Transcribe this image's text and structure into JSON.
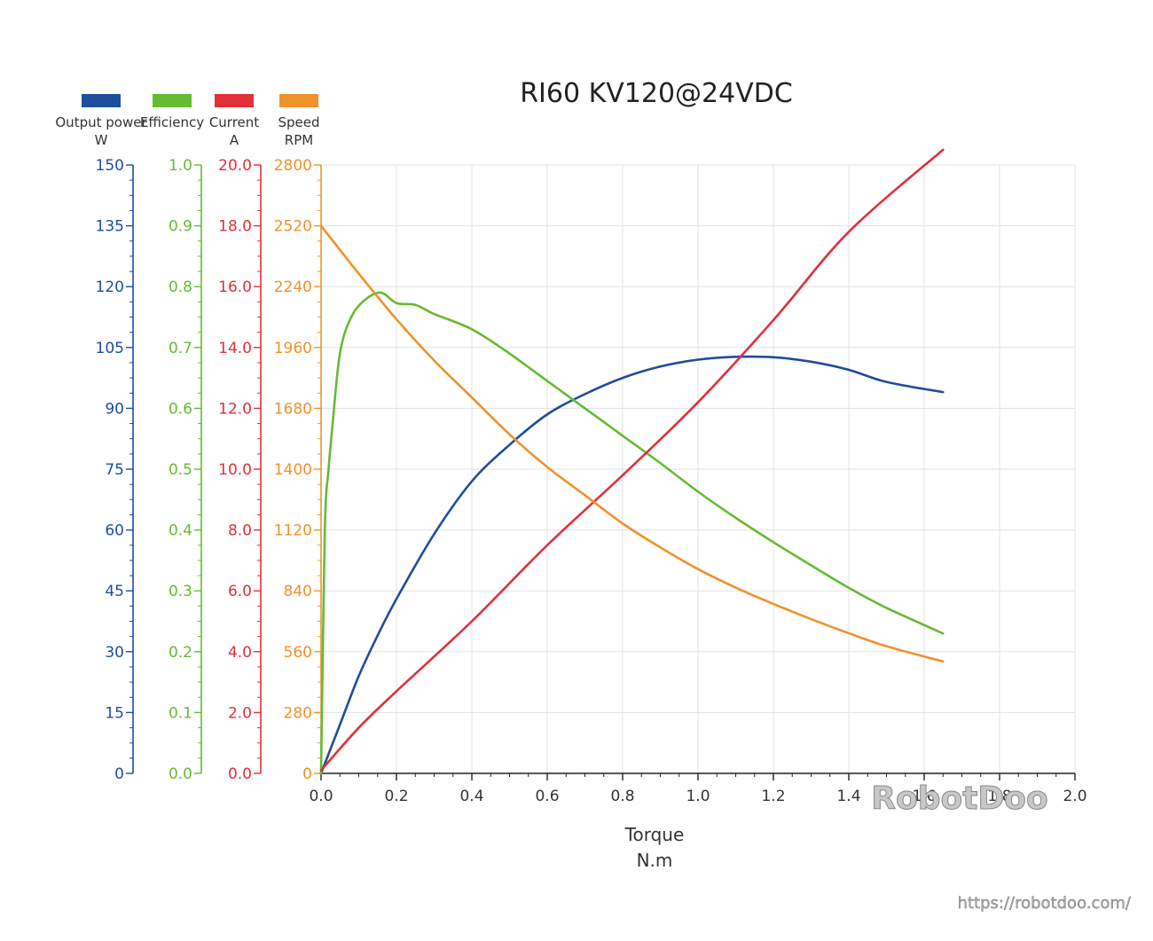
{
  "chart_data": {
    "type": "line",
    "title": "RI60 KV120@24VDC",
    "xlabel": "Torque",
    "xunit": "N.m",
    "xlim": [
      0,
      2.0
    ],
    "xticks": [
      "0.0",
      "0.2",
      "0.4",
      "0.6",
      "0.8",
      "1.0",
      "1.2",
      "1.4",
      "1.6",
      "1.8",
      "2.0"
    ],
    "grid": true,
    "legend_position": "top-left",
    "axes": [
      {
        "id": "power",
        "label": "Output power",
        "unit": "W",
        "color": "#1f4e9c",
        "range": [
          0,
          150
        ],
        "ticks": [
          "0",
          "15",
          "30",
          "45",
          "60",
          "75",
          "90",
          "105",
          "120",
          "135",
          "150"
        ]
      },
      {
        "id": "efficiency",
        "label": "Efficiency",
        "unit": "",
        "color": "#66bb33",
        "range": [
          0,
          1.0
        ],
        "ticks": [
          "0.0",
          "0.1",
          "0.2",
          "0.3",
          "0.4",
          "0.5",
          "0.6",
          "0.7",
          "0.8",
          "0.9",
          "1.0"
        ]
      },
      {
        "id": "current",
        "label": "Current",
        "unit": "A",
        "color": "#e0303a",
        "range": [
          0,
          20
        ],
        "ticks": [
          "0.0",
          "2.0",
          "4.0",
          "6.0",
          "8.0",
          "10.0",
          "12.0",
          "14.0",
          "16.0",
          "18.0",
          "20.0"
        ]
      },
      {
        "id": "speed",
        "label": "Speed",
        "unit": "RPM",
        "color": "#f0922b",
        "range": [
          0,
          2800
        ],
        "ticks": [
          "0",
          "280",
          "560",
          "840",
          "1120",
          "1400",
          "1680",
          "1960",
          "2240",
          "2520",
          "2800"
        ]
      }
    ],
    "series": [
      {
        "name": "Output power",
        "axis": "power",
        "color": "#1f4e9c",
        "points": [
          [
            0.0,
            0
          ],
          [
            0.05,
            12
          ],
          [
            0.1,
            24
          ],
          [
            0.15,
            34
          ],
          [
            0.2,
            43
          ],
          [
            0.3,
            59
          ],
          [
            0.4,
            72
          ],
          [
            0.5,
            81
          ],
          [
            0.6,
            88.5
          ],
          [
            0.7,
            93.5
          ],
          [
            0.8,
            97.5
          ],
          [
            0.9,
            100.3
          ],
          [
            1.0,
            102
          ],
          [
            1.1,
            102.7
          ],
          [
            1.2,
            102.6
          ],
          [
            1.3,
            101.5
          ],
          [
            1.4,
            99.5
          ],
          [
            1.5,
            96.5
          ],
          [
            1.65,
            94
          ]
        ]
      },
      {
        "name": "Efficiency",
        "axis": "efficiency",
        "color": "#66bb33",
        "points": [
          [
            0.0,
            0.0
          ],
          [
            0.01,
            0.4
          ],
          [
            0.02,
            0.5
          ],
          [
            0.03,
            0.57
          ],
          [
            0.05,
            0.69
          ],
          [
            0.08,
            0.75
          ],
          [
            0.12,
            0.78
          ],
          [
            0.16,
            0.79
          ],
          [
            0.2,
            0.773
          ],
          [
            0.25,
            0.77
          ],
          [
            0.3,
            0.755
          ],
          [
            0.4,
            0.73
          ],
          [
            0.5,
            0.69
          ],
          [
            0.6,
            0.645
          ],
          [
            0.7,
            0.6
          ],
          [
            0.8,
            0.555
          ],
          [
            0.9,
            0.51
          ],
          [
            1.0,
            0.463
          ],
          [
            1.1,
            0.42
          ],
          [
            1.2,
            0.38
          ],
          [
            1.3,
            0.342
          ],
          [
            1.4,
            0.305
          ],
          [
            1.5,
            0.272
          ],
          [
            1.65,
            0.23
          ]
        ]
      },
      {
        "name": "Current",
        "axis": "current",
        "color": "#e0303a",
        "points": [
          [
            0.0,
            0.1
          ],
          [
            0.1,
            1.5
          ],
          [
            0.2,
            2.7
          ],
          [
            0.4,
            5.0
          ],
          [
            0.6,
            7.5
          ],
          [
            0.8,
            9.8
          ],
          [
            1.0,
            12.2
          ],
          [
            1.2,
            14.9
          ],
          [
            1.4,
            17.8
          ],
          [
            1.65,
            20.5
          ]
        ]
      },
      {
        "name": "Speed",
        "axis": "speed",
        "color": "#f0922b",
        "points": [
          [
            0.0,
            2520
          ],
          [
            0.1,
            2300
          ],
          [
            0.2,
            2090
          ],
          [
            0.3,
            1900
          ],
          [
            0.4,
            1730
          ],
          [
            0.5,
            1560
          ],
          [
            0.6,
            1410
          ],
          [
            0.7,
            1280
          ],
          [
            0.8,
            1150
          ],
          [
            0.9,
            1040
          ],
          [
            1.0,
            940
          ],
          [
            1.1,
            855
          ],
          [
            1.2,
            780
          ],
          [
            1.3,
            710
          ],
          [
            1.4,
            645
          ],
          [
            1.5,
            585
          ],
          [
            1.65,
            515
          ]
        ]
      }
    ]
  },
  "watermark": "RobotDoo",
  "source_url": "https://robotdoo.com/"
}
